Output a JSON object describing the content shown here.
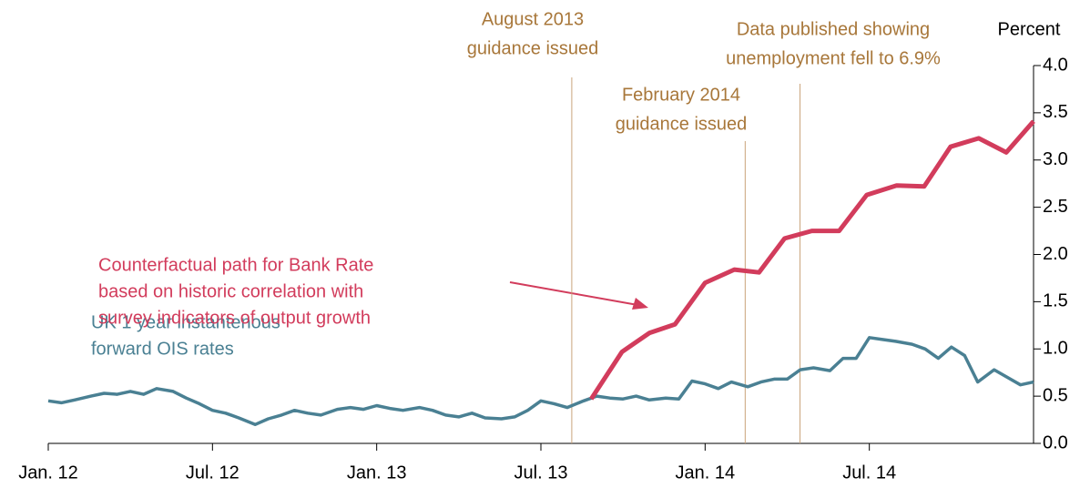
{
  "chart_data": {
    "type": "line",
    "y_label": "Percent",
    "xlim": [
      2012,
      2015
    ],
    "xticks": [
      {
        "value": 2012,
        "label": "Jan. 12"
      },
      {
        "value": 2012.5,
        "label": "Jul. 12"
      },
      {
        "value": 2013,
        "label": "Jan. 13"
      },
      {
        "value": 2013.5,
        "label": "Jul. 13"
      },
      {
        "value": 2014,
        "label": "Jan. 14"
      },
      {
        "value": 2014.5,
        "label": "Jul. 14"
      }
    ],
    "ylim": [
      0,
      4
    ],
    "yticks": [
      {
        "value": 0,
        "label": "0.0"
      },
      {
        "value": 0.5,
        "label": "0.5"
      },
      {
        "value": 1,
        "label": "1.0"
      },
      {
        "value": 1.5,
        "label": "1.5"
      },
      {
        "value": 2,
        "label": "2.0"
      },
      {
        "value": 2.5,
        "label": "2.5"
      },
      {
        "value": 3,
        "label": "3.0"
      },
      {
        "value": 3.5,
        "label": "3.5"
      },
      {
        "value": 4,
        "label": "4.0"
      }
    ],
    "series": [
      {
        "name": [
          "UK 1 year instantenous",
          "forward OIS rates"
        ],
        "color": "#4a8093",
        "x": [
          2012.0,
          2012.04,
          2012.08,
          2012.13,
          2012.17,
          2012.21,
          2012.25,
          2012.29,
          2012.33,
          2012.38,
          2012.42,
          2012.46,
          2012.5,
          2012.54,
          2012.58,
          2012.63,
          2012.67,
          2012.71,
          2012.75,
          2012.79,
          2012.83,
          2012.88,
          2012.92,
          2012.96,
          2013.0,
          2013.04,
          2013.08,
          2013.13,
          2013.17,
          2013.21,
          2013.25,
          2013.29,
          2013.33,
          2013.38,
          2013.42,
          2013.46,
          2013.5,
          2013.54,
          2013.58,
          2013.63,
          2013.67,
          2013.71,
          2013.75,
          2013.79,
          2013.83,
          2013.88,
          2013.92,
          2013.96,
          2014.0,
          2014.04,
          2014.08,
          2014.13,
          2014.17,
          2014.21,
          2014.25,
          2014.29,
          2014.33,
          2014.38,
          2014.42,
          2014.46,
          2014.5,
          2014.54,
          2014.58,
          2014.63,
          2014.67,
          2014.71,
          2014.75,
          2014.79,
          2014.83,
          2014.88,
          2014.92,
          2014.96,
          2015.0
        ],
        "values": [
          0.45,
          0.43,
          0.46,
          0.5,
          0.53,
          0.52,
          0.55,
          0.52,
          0.58,
          0.55,
          0.48,
          0.42,
          0.35,
          0.32,
          0.27,
          0.2,
          0.26,
          0.3,
          0.35,
          0.32,
          0.3,
          0.36,
          0.38,
          0.36,
          0.4,
          0.37,
          0.35,
          0.38,
          0.35,
          0.3,
          0.28,
          0.32,
          0.27,
          0.26,
          0.28,
          0.35,
          0.45,
          0.42,
          0.38,
          0.45,
          0.5,
          0.48,
          0.47,
          0.5,
          0.46,
          0.48,
          0.47,
          0.66,
          0.63,
          0.58,
          0.65,
          0.6,
          0.65,
          0.68,
          0.68,
          0.78,
          0.8,
          0.77,
          0.9,
          0.9,
          1.12,
          1.1,
          1.08,
          1.05,
          1.0,
          0.9,
          1.02,
          0.93,
          0.65,
          0.78,
          0.7,
          0.62,
          0.65
        ]
      },
      {
        "name": [
          "Counterfactual path for Bank Rate",
          "based on historic correlation with",
          "survey indicators of output growth"
        ],
        "color": "#d23c5c",
        "x": [
          2013.653,
          2013.747,
          2013.831,
          2013.908,
          2014.0,
          2014.089,
          2014.164,
          2014.242,
          2014.325,
          2014.408,
          2014.492,
          2014.583,
          2014.667,
          2014.747,
          2014.833,
          2014.917,
          2015.0
        ],
        "values": [
          0.47,
          0.97,
          1.17,
          1.26,
          1.7,
          1.84,
          1.81,
          2.17,
          2.25,
          2.25,
          2.63,
          2.73,
          2.72,
          3.14,
          3.23,
          3.08,
          3.41
        ]
      }
    ],
    "annotations": [
      {
        "x": 2013.594,
        "text": [
          "August 2013",
          "guidance issued"
        ]
      },
      {
        "x": 2014.122,
        "text": [
          "February 2014",
          "guidance issued"
        ]
      },
      {
        "x": 2014.289,
        "text": [
          "Data published showing",
          "unemployment fell to 6.9%"
        ]
      }
    ]
  }
}
